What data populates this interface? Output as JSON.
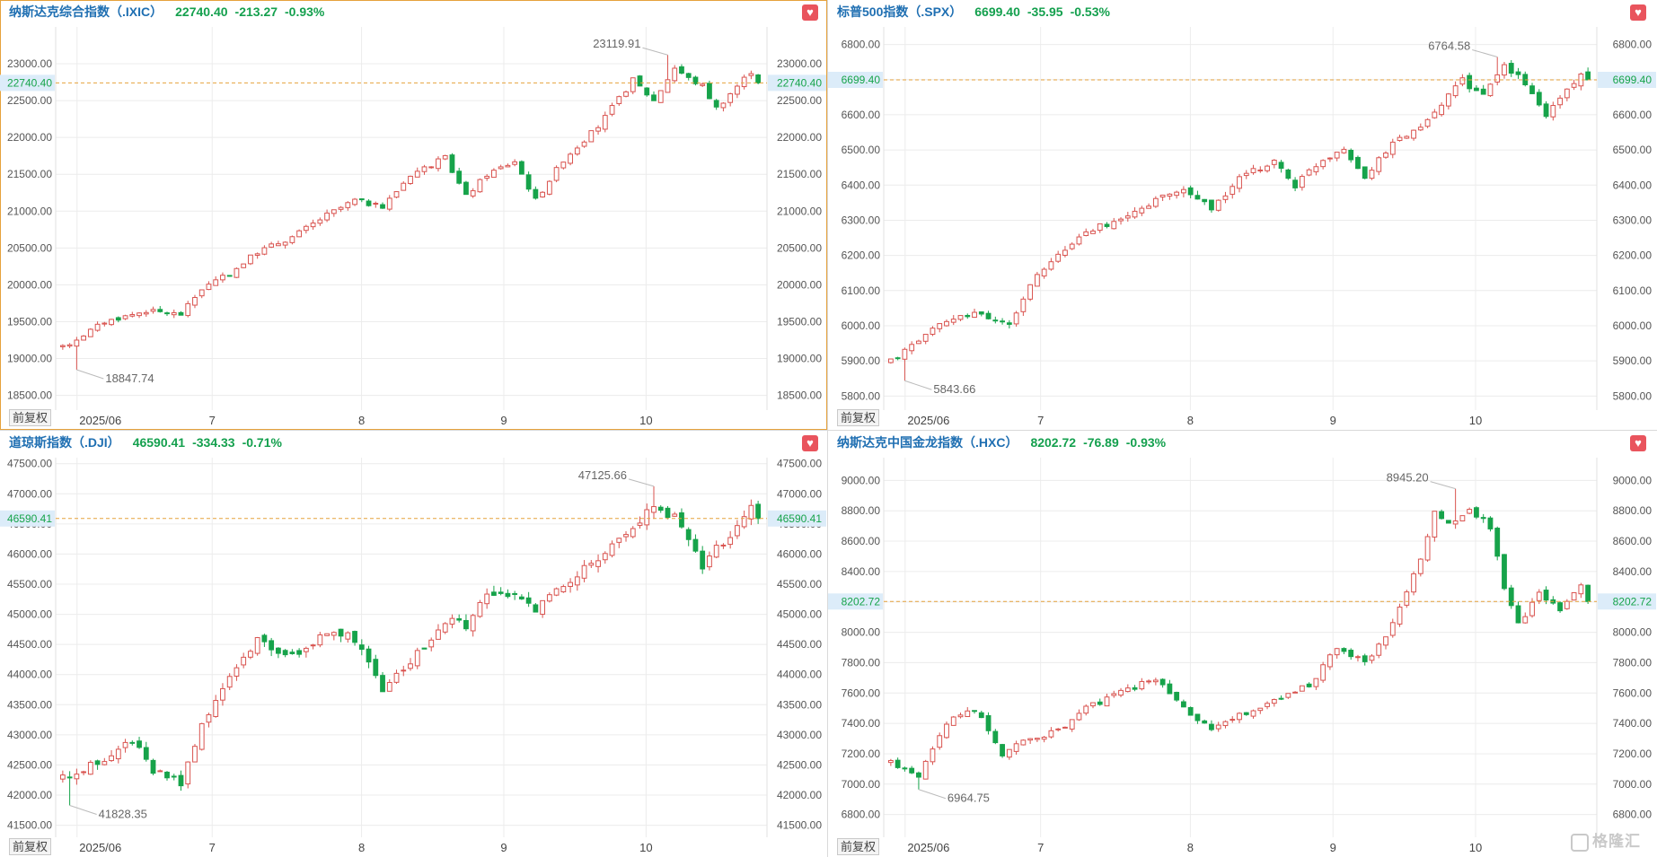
{
  "colors": {
    "up": "#d9534f",
    "down": "#16a34a",
    "header_name": "#1f6fb2",
    "change": "#14a04e",
    "last_line": "#e6a23c",
    "last_tag_bg": "#dcecf9",
    "grid": "#ececec"
  },
  "adjust_label": "前复权",
  "watermark": "格隆汇",
  "panels": [
    {
      "name": "纳斯达克综合指数（.IXIC）",
      "value": "22740.40",
      "change": "-213.27",
      "pct": "-0.93%",
      "last_label": "22740.40",
      "high_label": "23119.91",
      "low_label": "18847.74",
      "y_ticks": [
        "18500.00",
        "19000.00",
        "19500.00",
        "20000.00",
        "20500.00",
        "21000.00",
        "21500.00",
        "22000.00",
        "22500.00",
        "23000.00"
      ],
      "x_labels": [
        "2025/06",
        "7",
        "8",
        "9",
        "10"
      ],
      "chart_data": {
        "type": "candlestick",
        "ylim": [
          18300,
          23500
        ],
        "tick_values": [
          18500,
          19000,
          19500,
          20000,
          20500,
          21000,
          21500,
          22000,
          22500,
          23000
        ],
        "x_label_positions": [
          0.03,
          0.22,
          0.43,
          0.63,
          0.83
        ],
        "last": 22740.4,
        "high": 23119.91,
        "high_index": 87,
        "low": 18847.74,
        "low_index": 2,
        "end_value": 22740.4,
        "anchors": [
          [
            0,
            19150
          ],
          [
            6,
            19500
          ],
          [
            12,
            19650
          ],
          [
            17,
            19600
          ],
          [
            20,
            19950
          ],
          [
            24,
            20150
          ],
          [
            28,
            20450
          ],
          [
            33,
            20650
          ],
          [
            38,
            20950
          ],
          [
            42,
            21150
          ],
          [
            46,
            21050
          ],
          [
            50,
            21500
          ],
          [
            55,
            21720
          ],
          [
            58,
            21200
          ],
          [
            61,
            21500
          ],
          [
            65,
            21680
          ],
          [
            68,
            21150
          ],
          [
            72,
            21700
          ],
          [
            77,
            22150
          ],
          [
            82,
            22780
          ],
          [
            85,
            22500
          ],
          [
            88,
            22950
          ],
          [
            90,
            22800
          ],
          [
            92,
            22700
          ],
          [
            94,
            22400
          ],
          [
            96,
            22600
          ],
          [
            99,
            22900
          ],
          [
            100,
            22740.4
          ]
        ],
        "volatility": 0.004
      }
    },
    {
      "name": "标普500指数（.SPX）",
      "value": "6699.40",
      "change": "-35.95",
      "pct": "-0.53%",
      "last_label": "6699.40",
      "high_label": "6764.58",
      "low_label": "5843.66",
      "y_ticks": [
        "5800.00",
        "5900.00",
        "6000.00",
        "6100.00",
        "6200.00",
        "6300.00",
        "6400.00",
        "6500.00",
        "6600.00",
        "6700.00",
        "6800.00"
      ],
      "x_labels": [
        "2025/06",
        "7",
        "8",
        "9",
        "10"
      ],
      "chart_data": {
        "type": "candlestick",
        "ylim": [
          5760,
          6850
        ],
        "tick_values": [
          5800,
          5900,
          6000,
          6100,
          6200,
          6300,
          6400,
          6500,
          6600,
          6700,
          6800
        ],
        "x_label_positions": [
          0.03,
          0.22,
          0.43,
          0.63,
          0.83
        ],
        "last": 6699.4,
        "high": 6764.58,
        "high_index": 87,
        "low": 5843.66,
        "low_index": 2,
        "end_value": 6699.4,
        "anchors": [
          [
            0,
            5900
          ],
          [
            6,
            5990
          ],
          [
            12,
            6040
          ],
          [
            17,
            6000
          ],
          [
            20,
            6120
          ],
          [
            24,
            6200
          ],
          [
            28,
            6270
          ],
          [
            33,
            6300
          ],
          [
            38,
            6360
          ],
          [
            42,
            6390
          ],
          [
            46,
            6330
          ],
          [
            50,
            6420
          ],
          [
            55,
            6470
          ],
          [
            58,
            6400
          ],
          [
            61,
            6460
          ],
          [
            65,
            6510
          ],
          [
            68,
            6420
          ],
          [
            72,
            6520
          ],
          [
            77,
            6580
          ],
          [
            82,
            6700
          ],
          [
            85,
            6650
          ],
          [
            88,
            6740
          ],
          [
            90,
            6710
          ],
          [
            92,
            6660
          ],
          [
            94,
            6600
          ],
          [
            96,
            6650
          ],
          [
            99,
            6720
          ],
          [
            100,
            6699.4
          ]
        ],
        "volatility": 0.0035
      }
    },
    {
      "name": "道琼斯指数（.DJI）",
      "value": "46590.41",
      "change": "-334.33",
      "pct": "-0.71%",
      "last_label": "46590.41",
      "high_label": "47125.66",
      "low_label": "41828.35",
      "y_ticks": [
        "41500.00",
        "42000.00",
        "42500.00",
        "43000.00",
        "43500.00",
        "44000.00",
        "44500.00",
        "45000.00",
        "45500.00",
        "46000.00",
        "46500.00",
        "47000.00",
        "47500.00"
      ],
      "x_labels": [
        "2025/06",
        "7",
        "8",
        "9",
        "10"
      ],
      "chart_data": {
        "type": "candlestick",
        "ylim": [
          41300,
          47600
        ],
        "tick_values": [
          41500,
          42000,
          42500,
          43000,
          43500,
          44000,
          44500,
          45000,
          45500,
          46000,
          46500,
          47000,
          47500
        ],
        "x_label_positions": [
          0.03,
          0.22,
          0.43,
          0.63,
          0.83
        ],
        "last": 46590.41,
        "high": 47125.66,
        "high_index": 85,
        "low": 41828.35,
        "low_index": 1,
        "end_value": 46590.41,
        "anchors": [
          [
            0,
            42300
          ],
          [
            6,
            42600
          ],
          [
            10,
            42900
          ],
          [
            13,
            42400
          ],
          [
            17,
            42200
          ],
          [
            20,
            43200
          ],
          [
            24,
            44000
          ],
          [
            28,
            44600
          ],
          [
            33,
            44300
          ],
          [
            38,
            44700
          ],
          [
            42,
            44600
          ],
          [
            46,
            43700
          ],
          [
            50,
            44200
          ],
          [
            55,
            44900
          ],
          [
            58,
            44800
          ],
          [
            61,
            45400
          ],
          [
            65,
            45300
          ],
          [
            68,
            45100
          ],
          [
            72,
            45500
          ],
          [
            77,
            45900
          ],
          [
            82,
            46400
          ],
          [
            85,
            46800
          ],
          [
            88,
            46600
          ],
          [
            90,
            46200
          ],
          [
            92,
            45800
          ],
          [
            94,
            46100
          ],
          [
            96,
            46300
          ],
          [
            99,
            46800
          ],
          [
            100,
            46590.41
          ]
        ],
        "volatility": 0.004
      }
    },
    {
      "name": "纳斯达克中国金龙指数（.HXC）",
      "value": "8202.72",
      "change": "-76.89",
      "pct": "-0.93%",
      "last_label": "8202.72",
      "high_label": "8945.20",
      "low_label": "6964.75",
      "y_ticks": [
        "6800.00",
        "7000.00",
        "7200.00",
        "7400.00",
        "7600.00",
        "7800.00",
        "8000.00",
        "8200.00",
        "8400.00",
        "8600.00",
        "8800.00",
        "9000.00"
      ],
      "x_labels": [
        "2025/06",
        "7",
        "8",
        "9",
        "10"
      ],
      "chart_data": {
        "type": "candlestick",
        "ylim": [
          6650,
          9150
        ],
        "tick_values": [
          6800,
          7000,
          7200,
          7400,
          7600,
          7800,
          8000,
          8200,
          8400,
          8600,
          8800,
          9000
        ],
        "x_label_positions": [
          0.03,
          0.22,
          0.43,
          0.63,
          0.83
        ],
        "last": 8202.72,
        "high": 8945.2,
        "high_index": 81,
        "low": 6964.75,
        "low_index": 4,
        "end_value": 8202.72,
        "anchors": [
          [
            0,
            7150
          ],
          [
            4,
            7050
          ],
          [
            8,
            7400
          ],
          [
            12,
            7500
          ],
          [
            16,
            7200
          ],
          [
            20,
            7300
          ],
          [
            24,
            7350
          ],
          [
            28,
            7500
          ],
          [
            33,
            7600
          ],
          [
            38,
            7700
          ],
          [
            42,
            7500
          ],
          [
            46,
            7350
          ],
          [
            50,
            7450
          ],
          [
            55,
            7550
          ],
          [
            60,
            7650
          ],
          [
            64,
            7900
          ],
          [
            68,
            7800
          ],
          [
            72,
            8050
          ],
          [
            76,
            8500
          ],
          [
            78,
            8800
          ],
          [
            80,
            8700
          ],
          [
            83,
            8800
          ],
          [
            86,
            8700
          ],
          [
            88,
            8300
          ],
          [
            90,
            8050
          ],
          [
            93,
            8250
          ],
          [
            96,
            8150
          ],
          [
            99,
            8300
          ],
          [
            100,
            8202.72
          ]
        ],
        "volatility": 0.006
      }
    }
  ]
}
